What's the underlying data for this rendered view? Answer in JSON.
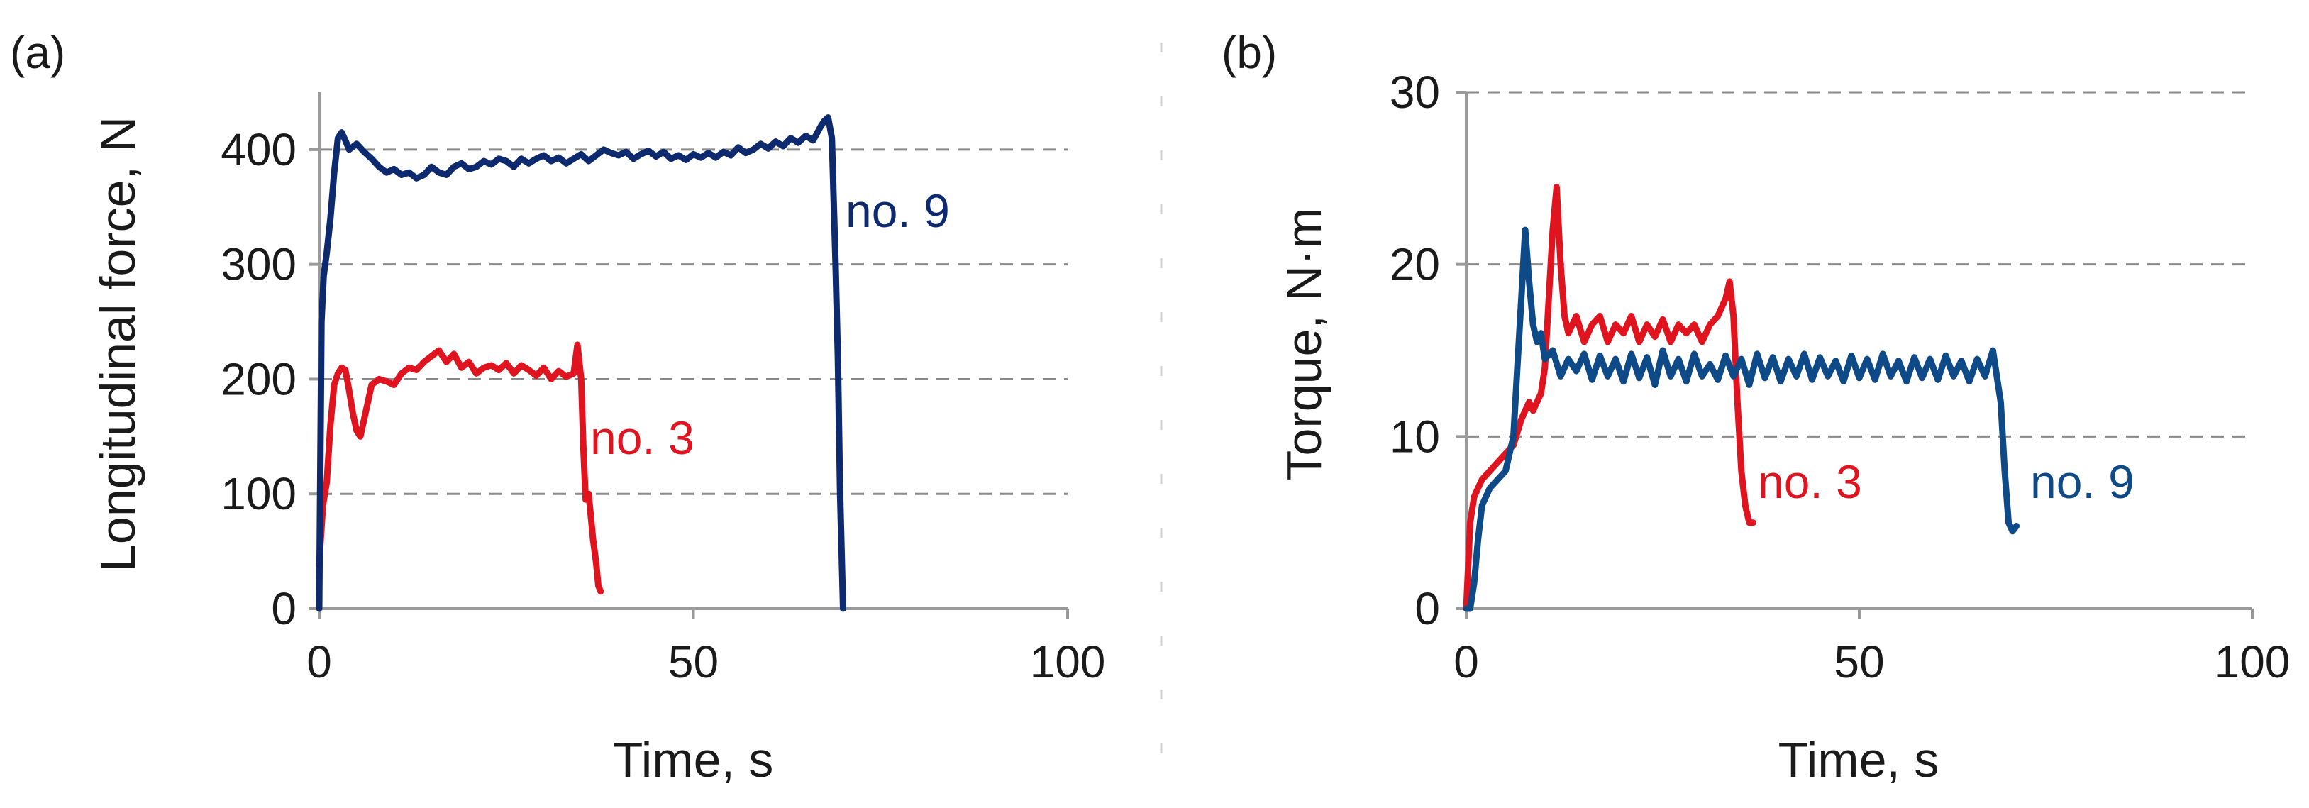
{
  "chart_data": [
    {
      "type": "line",
      "panel_label": "(a)",
      "xlabel": "Time, s",
      "ylabel": "Longitudinal force, N",
      "xlim": [
        0,
        100
      ],
      "ylim": [
        0,
        450
      ],
      "xticks": [
        "0",
        "50",
        "100"
      ],
      "yticks": [
        "0",
        "100",
        "200",
        "300",
        "400"
      ],
      "grid": "horizontal-dashed",
      "series": [
        {
          "name": "no. 9",
          "color": "#0d2a6e",
          "x": [
            0,
            0.3,
            0.6,
            1,
            1.5,
            2,
            2.5,
            3,
            3.5,
            4,
            5,
            6,
            7,
            8,
            9,
            10,
            11,
            12,
            13,
            14,
            15,
            16,
            17,
            18,
            19,
            20,
            21,
            22,
            23,
            24,
            25,
            26,
            27,
            28,
            29,
            30,
            31,
            32,
            33,
            34,
            35,
            36,
            37,
            38,
            39,
            40,
            41,
            42,
            43,
            44,
            45,
            46,
            47,
            48,
            49,
            50,
            51,
            52,
            53,
            54,
            55,
            56,
            57,
            58,
            59,
            60,
            61,
            62,
            63,
            64,
            65,
            66,
            67,
            67.5,
            68,
            68.5,
            69,
            69.3,
            69.6,
            70
          ],
          "y": [
            0,
            250,
            290,
            310,
            340,
            380,
            410,
            415,
            408,
            400,
            405,
            398,
            392,
            385,
            380,
            383,
            378,
            380,
            375,
            378,
            385,
            380,
            378,
            385,
            388,
            383,
            385,
            390,
            387,
            392,
            390,
            385,
            392,
            388,
            392,
            395,
            390,
            393,
            388,
            392,
            396,
            390,
            395,
            400,
            397,
            395,
            398,
            392,
            396,
            399,
            394,
            398,
            392,
            395,
            391,
            396,
            393,
            397,
            393,
            398,
            395,
            402,
            397,
            400,
            405,
            401,
            407,
            403,
            410,
            406,
            412,
            408,
            420,
            425,
            428,
            410,
            300,
            220,
            100,
            0
          ]
        },
        {
          "name": "no. 3",
          "color": "#e0141e",
          "x": [
            0,
            0.5,
            1,
            1.5,
            2,
            2.5,
            3,
            3.5,
            4,
            4.5,
            5,
            5.5,
            6,
            6.5,
            7,
            8,
            9,
            10,
            11,
            12,
            13,
            14,
            15,
            16,
            17,
            18,
            19,
            20,
            21,
            22,
            23,
            24,
            25,
            26,
            27,
            28,
            29,
            30,
            31,
            32,
            33,
            34,
            34.5,
            35,
            35.3,
            35.6,
            36,
            36.3,
            36.6,
            37,
            37.3,
            37.6
          ],
          "y": [
            40,
            90,
            110,
            160,
            195,
            205,
            210,
            208,
            190,
            170,
            155,
            150,
            165,
            180,
            195,
            200,
            198,
            195,
            205,
            210,
            208,
            215,
            220,
            225,
            215,
            222,
            210,
            215,
            205,
            210,
            212,
            208,
            214,
            205,
            212,
            208,
            203,
            210,
            200,
            207,
            202,
            205,
            230,
            200,
            140,
            95,
            100,
            80,
            60,
            40,
            20,
            15
          ]
        }
      ]
    },
    {
      "type": "line",
      "panel_label": "(b)",
      "xlabel": "Time, s",
      "ylabel": "Torque, N·m",
      "xlim": [
        0,
        100
      ],
      "ylim": [
        0,
        30
      ],
      "xticks": [
        "0",
        "50",
        "100"
      ],
      "yticks": [
        "0",
        "10",
        "20",
        "30"
      ],
      "grid": "horizontal-dashed",
      "series": [
        {
          "name": "no. 3",
          "color": "#e0141e",
          "x": [
            0,
            0.5,
            1,
            1.5,
            2,
            3,
            4,
            5,
            6,
            7,
            7.5,
            8,
            8.5,
            9,
            9.5,
            10,
            10.5,
            11,
            11.5,
            12,
            12.5,
            13,
            14,
            15,
            16,
            17,
            18,
            19,
            20,
            21,
            22,
            23,
            24,
            25,
            26,
            27,
            28,
            29,
            30,
            31,
            32,
            33,
            33.5,
            34,
            34.5,
            35,
            35.5,
            36,
            36.5
          ],
          "y": [
            0,
            5,
            6.5,
            7,
            7.5,
            8,
            8.5,
            9,
            9.5,
            11,
            11.5,
            12,
            11.5,
            12,
            12.5,
            14,
            18,
            22,
            24.5,
            20,
            17,
            16,
            17,
            15.5,
            16.5,
            17,
            15.5,
            16.5,
            16,
            17,
            15.5,
            16.5,
            15.8,
            16.8,
            15.5,
            16.5,
            16,
            16.5,
            15.5,
            16.5,
            17,
            18,
            19,
            17,
            12,
            8,
            6,
            5,
            5
          ]
        },
        {
          "name": "no. 9",
          "color": "#0e4a87",
          "x": [
            0,
            0.5,
            1,
            1.5,
            2,
            3,
            4,
            5,
            6,
            6.5,
            7,
            7.5,
            8,
            8.5,
            9,
            9.5,
            10,
            11,
            12,
            13,
            14,
            15,
            16,
            17,
            18,
            19,
            20,
            21,
            22,
            23,
            24,
            25,
            26,
            27,
            28,
            29,
            30,
            31,
            32,
            33,
            34,
            35,
            36,
            37,
            38,
            39,
            40,
            41,
            42,
            43,
            44,
            45,
            46,
            47,
            48,
            49,
            50,
            51,
            52,
            53,
            54,
            55,
            56,
            57,
            58,
            59,
            60,
            61,
            62,
            63,
            64,
            65,
            66,
            67,
            67.5,
            68,
            68.5,
            69,
            69.5,
            70
          ],
          "y": [
            0,
            0,
            1.5,
            4,
            6,
            7,
            7.5,
            8,
            10,
            14,
            18,
            22,
            19,
            16.5,
            15.5,
            16,
            14.5,
            15,
            13.5,
            14.5,
            13.8,
            14.8,
            13.3,
            14.7,
            13.5,
            14.5,
            13.2,
            14.8,
            13.4,
            14.6,
            13,
            15,
            13.5,
            14.5,
            13.2,
            14.8,
            13.5,
            14.2,
            13.3,
            14.7,
            13.5,
            14.5,
            13,
            14.8,
            13.4,
            14.6,
            13.2,
            14.5,
            13.5,
            14.8,
            13.3,
            14.6,
            13.5,
            14.4,
            13.2,
            14.7,
            13.4,
            14.5,
            13.3,
            14.8,
            13.5,
            14.4,
            13.2,
            14.6,
            13.4,
            14.5,
            13.3,
            14.7,
            13.5,
            14.4,
            13.2,
            14.5,
            13.5,
            15,
            13.5,
            12,
            8,
            5,
            4.5,
            4.8
          ]
        }
      ]
    }
  ]
}
